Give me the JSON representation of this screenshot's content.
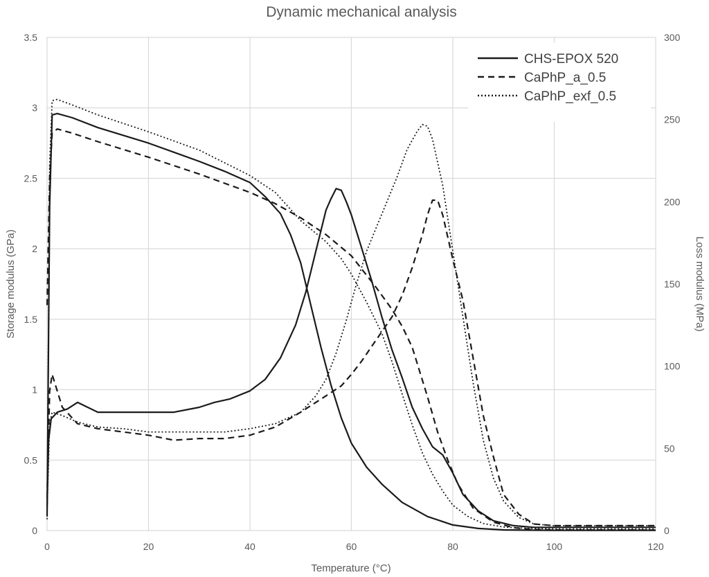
{
  "chart_data": {
    "type": "line",
    "title": "Dynamic mechanical analysis",
    "xlabel": "Temperature (°C)",
    "ylabel": "Storage modulus (GPa)",
    "y2label": "Loss modulus (MPa)",
    "xlim": [
      0,
      120
    ],
    "ylim": [
      0,
      3.5
    ],
    "y2lim": [
      0,
      300
    ],
    "x_ticks": [
      "0",
      "20",
      "40",
      "60",
      "80",
      "100",
      "120"
    ],
    "y_ticks": [
      "0",
      "0.5",
      "1",
      "1.5",
      "2",
      "2.5",
      "3",
      "3.5"
    ],
    "y2_ticks": [
      "0",
      "50",
      "100",
      "150",
      "200",
      "250",
      "300"
    ],
    "grid": true,
    "legend_position": "top-right",
    "series": [
      {
        "name": "CHS-EPOX 520",
        "style": "solid",
        "axis": "left",
        "quantity": "storage",
        "x": [
          0,
          0.5,
          1,
          2,
          5,
          10,
          20,
          30,
          35,
          40,
          43,
          46,
          48,
          50,
          52,
          54,
          56,
          58,
          60,
          63,
          66,
          70,
          75,
          80,
          85,
          90,
          95,
          100,
          120
        ],
        "y": [
          0.1,
          2.3,
          2.95,
          2.96,
          2.93,
          2.86,
          2.75,
          2.62,
          2.55,
          2.47,
          2.37,
          2.25,
          2.1,
          1.9,
          1.6,
          1.3,
          1.03,
          0.8,
          0.62,
          0.45,
          0.33,
          0.2,
          0.1,
          0.04,
          0.015,
          0.005,
          0.003,
          0.002,
          0.002
        ]
      },
      {
        "name": "CaPhP_a_0.5",
        "style": "dashed",
        "axis": "left",
        "quantity": "storage",
        "x": [
          0,
          0.5,
          1,
          2,
          5,
          10,
          20,
          30,
          40,
          45,
          50,
          55,
          60,
          65,
          68,
          70,
          72,
          75,
          77,
          79,
          81,
          84,
          88,
          92,
          96,
          100,
          120
        ],
        "y": [
          1.6,
          2.5,
          2.82,
          2.85,
          2.82,
          2.76,
          2.65,
          2.53,
          2.4,
          2.32,
          2.22,
          2.1,
          1.95,
          1.72,
          1.57,
          1.45,
          1.3,
          0.95,
          0.7,
          0.5,
          0.33,
          0.16,
          0.06,
          0.02,
          0.008,
          0.005,
          0.004
        ]
      },
      {
        "name": "CaPhP_exf_0.5",
        "style": "dotted",
        "axis": "left",
        "quantity": "storage",
        "x": [
          0,
          0.5,
          1,
          2,
          5,
          10,
          20,
          30,
          40,
          45,
          50,
          55,
          58,
          60,
          63,
          66,
          68,
          70,
          72,
          74,
          76,
          78,
          80,
          83,
          86,
          90,
          95,
          100,
          120
        ],
        "y": [
          0.08,
          2.6,
          3.05,
          3.06,
          3.02,
          2.95,
          2.83,
          2.7,
          2.52,
          2.4,
          2.2,
          2.05,
          1.93,
          1.82,
          1.62,
          1.4,
          1.2,
          0.97,
          0.75,
          0.55,
          0.4,
          0.28,
          0.18,
          0.1,
          0.05,
          0.025,
          0.015,
          0.012,
          0.012
        ]
      },
      {
        "name": "CHS-EPOX 520",
        "style": "solid",
        "axis": "right",
        "quantity": "loss",
        "x": [
          0,
          0.3,
          0.8,
          2,
          4,
          6,
          8,
          10,
          15,
          20,
          25,
          30,
          33,
          36,
          40,
          43,
          46,
          49,
          51,
          53,
          55,
          56,
          57,
          58,
          59,
          60,
          62,
          64,
          66,
          68,
          70,
          72,
          74,
          76,
          78,
          80,
          82,
          85,
          88,
          92,
          96,
          100,
          120
        ],
        "y": [
          15,
          55,
          68,
          72,
          74,
          78,
          75,
          72,
          72,
          72,
          72,
          75,
          78,
          80,
          85,
          92,
          105,
          125,
          145,
          170,
          195,
          202,
          208,
          207,
          200,
          192,
          172,
          152,
          130,
          110,
          93,
          75,
          62,
          51,
          46,
          35,
          22,
          12,
          6,
          3,
          2,
          2,
          2
        ]
      },
      {
        "name": "CaPhP_a_0.5",
        "style": "dashed",
        "axis": "right",
        "quantity": "loss",
        "x": [
          0,
          0.5,
          1,
          3,
          6,
          10,
          15,
          20,
          25,
          30,
          35,
          40,
          45,
          50,
          55,
          58,
          60,
          62,
          64,
          66,
          68,
          70,
          72,
          73,
          74,
          75,
          76,
          77,
          78,
          80,
          82,
          84,
          86,
          88,
          90,
          93,
          96,
          100,
          120
        ],
        "y": [
          20,
          85,
          95,
          75,
          65,
          62,
          60,
          58,
          55,
          56,
          56,
          58,
          63,
          72,
          82,
          88,
          95,
          103,
          112,
          121,
          130,
          143,
          160,
          170,
          180,
          192,
          201,
          201,
          192,
          165,
          140,
          105,
          70,
          45,
          22,
          10,
          4,
          3,
          3
        ]
      },
      {
        "name": "CaPhP_exf_0.5",
        "style": "dotted",
        "axis": "right",
        "quantity": "loss",
        "x": [
          0,
          0.5,
          1,
          3,
          6,
          10,
          15,
          20,
          25,
          30,
          35,
          40,
          45,
          50,
          53,
          55,
          57,
          59,
          61,
          63,
          65,
          67,
          69,
          71,
          73,
          74,
          75,
          76,
          78,
          80,
          82,
          84,
          86,
          88,
          90,
          93,
          96,
          100,
          120
        ],
        "y": [
          12,
          65,
          72,
          70,
          66,
          63,
          62,
          60,
          60,
          60,
          60,
          62,
          65,
          72,
          82,
          92,
          108,
          128,
          150,
          170,
          185,
          200,
          215,
          232,
          243,
          247,
          246,
          238,
          210,
          170,
          130,
          90,
          55,
          32,
          18,
          8,
          4,
          3,
          3
        ]
      }
    ]
  }
}
